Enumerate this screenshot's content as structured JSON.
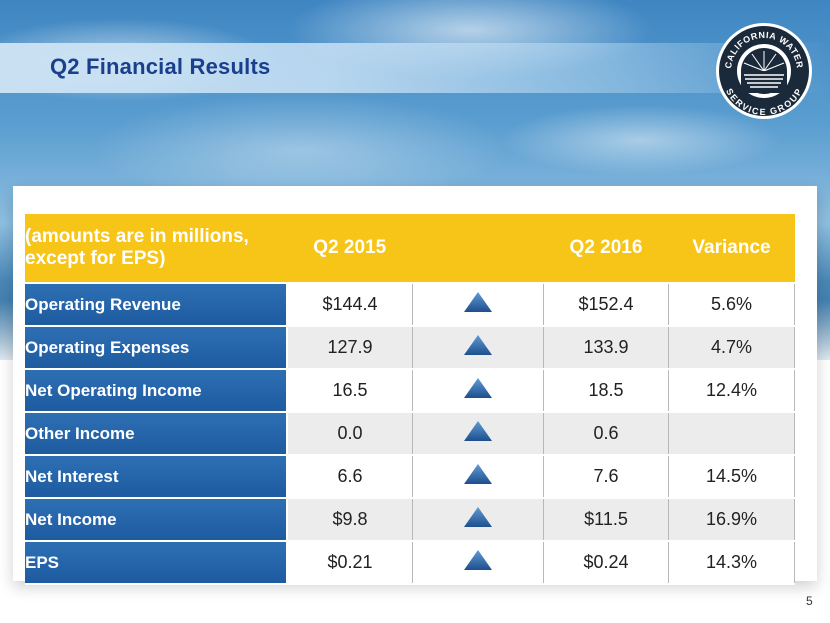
{
  "slide": {
    "title": "Q2 Financial Results",
    "page_number": "5",
    "logo": {
      "icon": "california-water-service-group-logo",
      "text": "CALIFORNIA WATER SERVICE GROUP"
    }
  },
  "table": {
    "note": "(amounts are in millions, except for EPS)",
    "headers": {
      "q2_2015": "Q2 2015",
      "q2_2016": "Q2 2016",
      "variance": "Variance"
    },
    "rows": [
      {
        "label": "Operating Revenue",
        "q2_2015": "$144.4",
        "trend": "up-triangle-icon",
        "q2_2016": "$152.4",
        "variance": "5.6%"
      },
      {
        "label": "Operating Expenses",
        "q2_2015": "127.9",
        "trend": "up-triangle-icon",
        "q2_2016": "133.9",
        "variance": "4.7%"
      },
      {
        "label": "Net Operating Income",
        "q2_2015": "16.5",
        "trend": "up-triangle-icon",
        "q2_2016": "18.5",
        "variance": "12.4%"
      },
      {
        "label": "Other Income",
        "q2_2015": "0.0",
        "trend": "up-triangle-icon",
        "q2_2016": "0.6",
        "variance": ""
      },
      {
        "label": "Net Interest",
        "q2_2015": "6.6",
        "trend": "up-triangle-icon",
        "q2_2016": "7.6",
        "variance": "14.5%"
      },
      {
        "label": "Net Income",
        "q2_2015": "$9.8",
        "trend": "up-triangle-icon",
        "q2_2016": "$11.5",
        "variance": "16.9%"
      },
      {
        "label": "EPS",
        "q2_2015": "$0.21",
        "trend": "up-triangle-icon",
        "q2_2016": "$0.24",
        "variance": "14.3%"
      }
    ]
  },
  "colors": {
    "header_gold": "#f7c418",
    "label_blue": "#2366ad",
    "title_blue": "#1a3f8c"
  }
}
